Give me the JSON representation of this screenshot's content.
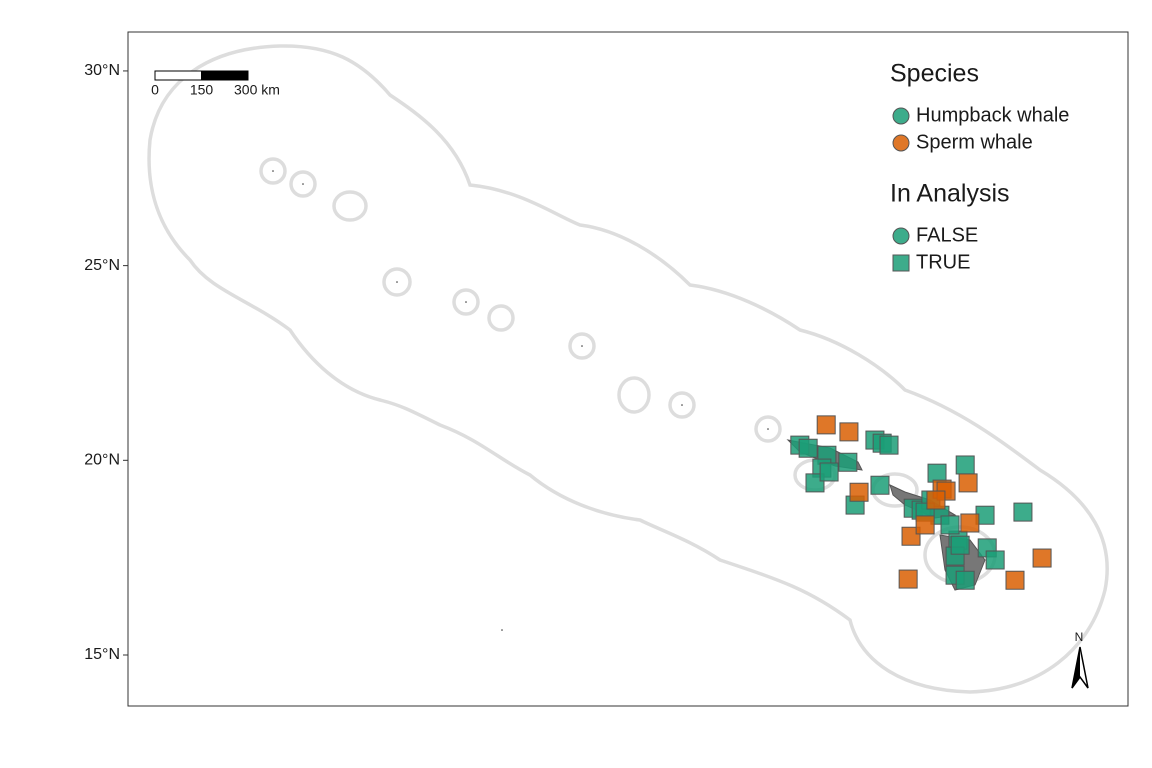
{
  "chart_data": {
    "type": "scatter",
    "xlim": [
      -179.0,
      -151.3
    ],
    "ylim": [
      13.69,
      31.0
    ],
    "yticks": [
      {
        "value": 15,
        "label": "15°N"
      },
      {
        "value": 20,
        "label": "20°N"
      },
      {
        "value": 25,
        "label": "25°N"
      },
      {
        "value": 30,
        "label": "30°N"
      }
    ],
    "legend_title": "Species",
    "series": [
      {
        "name": "Humpback whale",
        "color": "#1b9e77",
        "x": [
          -160.39,
          -160.16,
          -159.64,
          -159.78,
          -159.97,
          -159.58,
          -159.06,
          -158.31,
          -158.11,
          -157.92,
          -158.17,
          -158.86,
          -155.81,
          -156.59,
          -157.25,
          -157.03,
          -156.76,
          -156.51,
          -155.26,
          -154.21,
          -156.01,
          -156.09,
          -156.09,
          -155.81,
          -155.2,
          -154.98,
          -156.23,
          -155.95,
          -156.92
        ],
        "values": [
          20.39,
          20.31,
          20.13,
          19.8,
          19.42,
          19.7,
          19.95,
          20.52,
          20.44,
          20.39,
          19.36,
          18.85,
          19.88,
          19.67,
          18.77,
          18.72,
          18.98,
          18.59,
          18.59,
          18.67,
          17.95,
          17.54,
          17.05,
          16.92,
          17.75,
          17.44,
          18.34,
          17.82,
          18.67
        ]
      },
      {
        "name": "Sperm whale",
        "color": "#d95f02",
        "x": [
          -159.66,
          -159.03,
          -158.75,
          -156.45,
          -156.34,
          -155.73,
          -157.31,
          -156.92,
          -155.68,
          -157.39,
          -154.43,
          -153.68,
          -156.62
        ],
        "values": [
          20.91,
          20.73,
          19.18,
          19.26,
          19.21,
          19.42,
          18.05,
          18.34,
          18.39,
          16.95,
          16.92,
          17.49,
          18.98
        ]
      }
    ],
    "shape_legend": {
      "title": "In Analysis",
      "entries": [
        {
          "label": "FALSE",
          "shape": "circle"
        },
        {
          "label": "TRUE",
          "shape": "square"
        }
      ]
    },
    "point_shape": "square",
    "scale_bar": {
      "ticks": [
        {
          "value": 0,
          "label": "0"
        },
        {
          "value": 150,
          "label": "150"
        },
        {
          "value": 300,
          "label": "300 km"
        }
      ]
    },
    "north_arrow": "N"
  }
}
